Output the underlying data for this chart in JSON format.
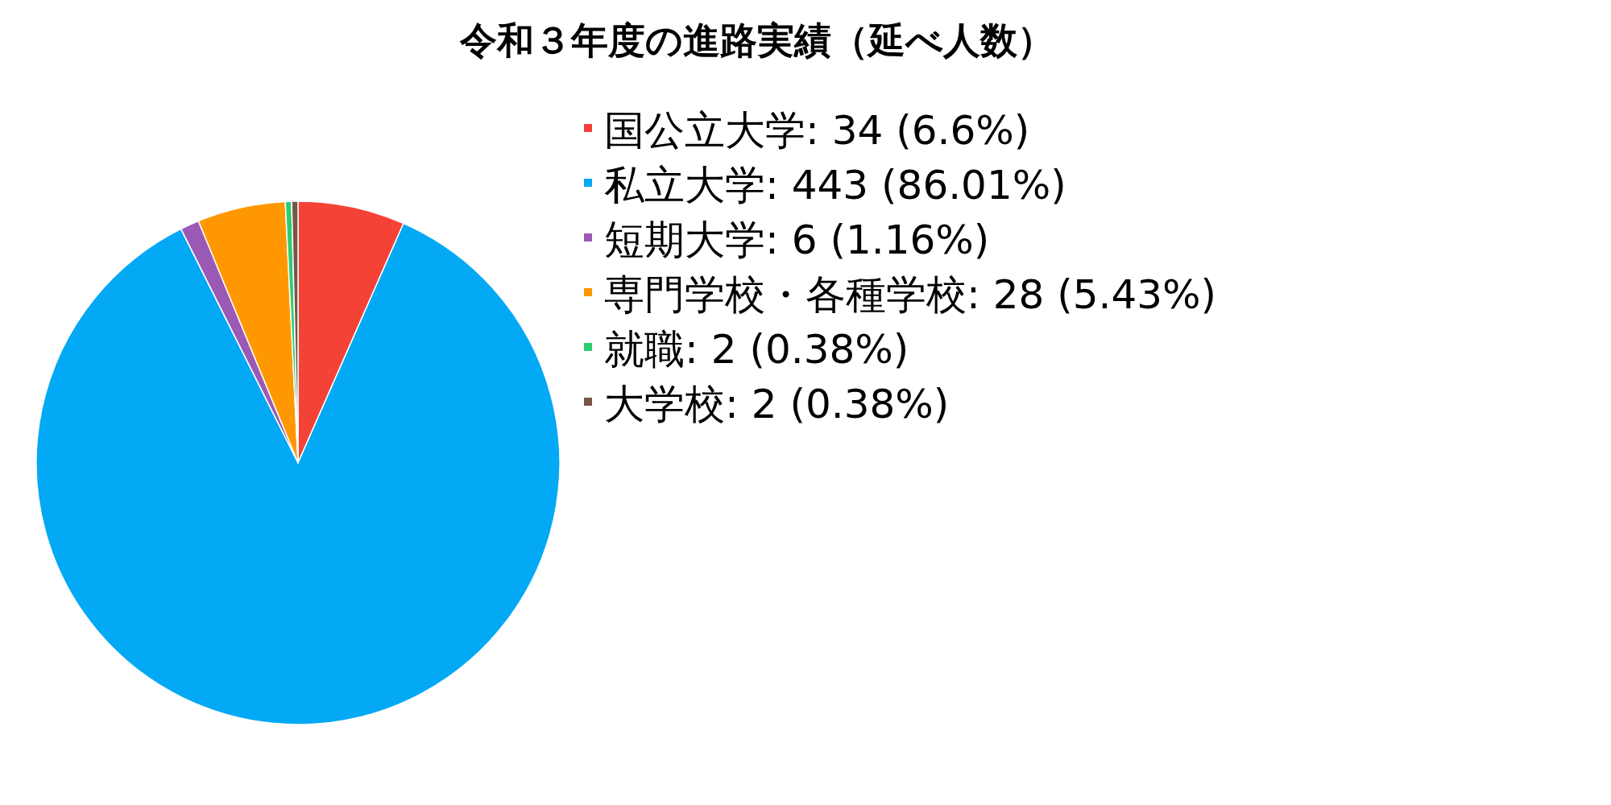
{
  "chart_data": {
    "type": "pie",
    "title": "令和３年度の進路実績（延べ人数）",
    "categories": [
      "国公立大学: 34 (6.6%)",
      "私立大学: 443 (86.01%)",
      "短期大学: 6 (1.16%)",
      "専門学校・各種学校: 28 (5.43%)",
      "就職: 2 (0.38%)",
      "大学校: 2 (0.38%)"
    ],
    "values": [
      34,
      443,
      6,
      28,
      2,
      2
    ],
    "colors": [
      "#f44336",
      "#03a9f4",
      "#9b59b6",
      "#ff9800",
      "#2ecc71",
      "#795548"
    ],
    "legend": "top right"
  }
}
